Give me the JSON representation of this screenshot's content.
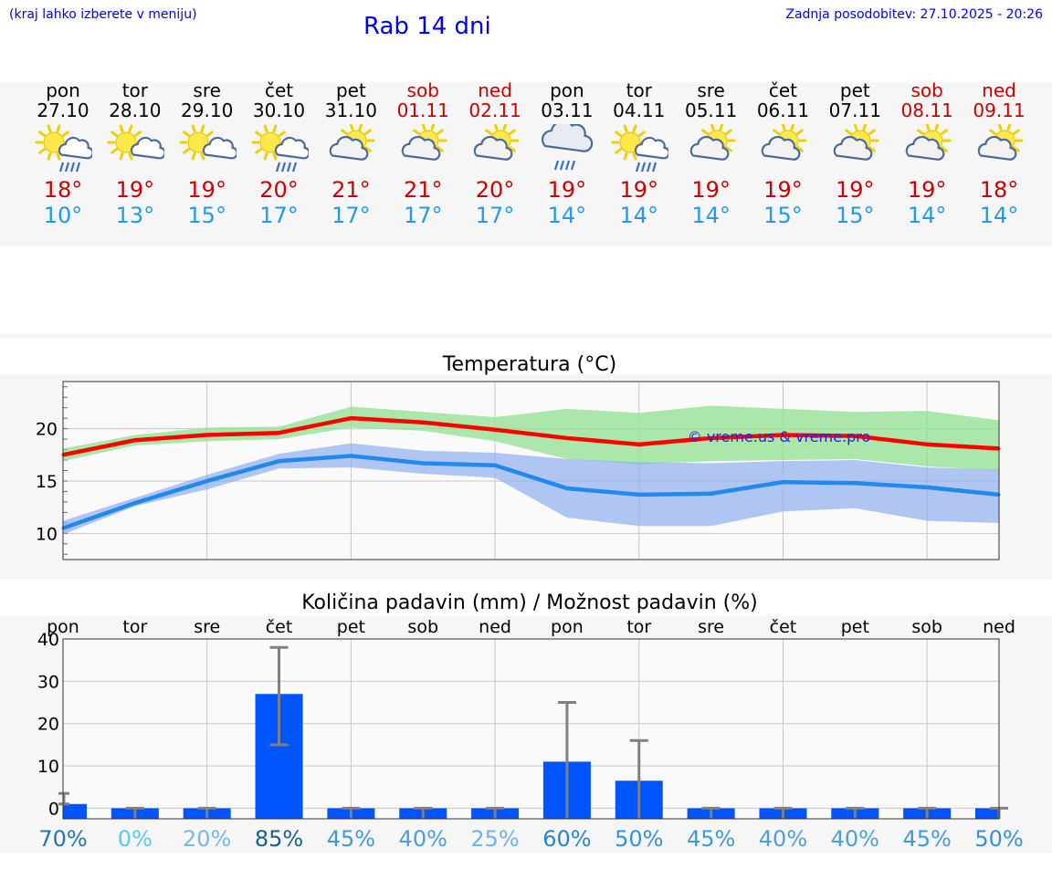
{
  "header": {
    "hint": "(kraj lahko izberete v meniju)",
    "title": "Rab 14 dni",
    "updated": "Zadnja posodobitev: 27.10.2025 - 20:26"
  },
  "colors": {
    "weekday": "#000000",
    "weekend": "#cc0000",
    "tmax": "#cc0000",
    "tmin": "#2299ee",
    "max_line": "#ff0000",
    "min_line": "#2288ee",
    "max_band": "#90e090",
    "min_band": "#88aaee",
    "bar": "#0055ff",
    "whisker": "#808080"
  },
  "days": [
    {
      "name": "pon",
      "date": "27.10",
      "weekend": false,
      "icon": "sun-cloud-rain-icon",
      "tmax": "18°",
      "tmin": "10°"
    },
    {
      "name": "tor",
      "date": "28.10",
      "weekend": false,
      "icon": "sun-cloud-icon",
      "tmax": "19°",
      "tmin": "13°"
    },
    {
      "name": "sre",
      "date": "29.10",
      "weekend": false,
      "icon": "sun-cloud-icon",
      "tmax": "19°",
      "tmin": "15°"
    },
    {
      "name": "čet",
      "date": "30.10",
      "weekend": false,
      "icon": "sun-cloud-rain-icon",
      "tmax": "20°",
      "tmin": "17°"
    },
    {
      "name": "pet",
      "date": "31.10",
      "weekend": false,
      "icon": "cloud-sun-icon",
      "tmax": "21°",
      "tmin": "17°"
    },
    {
      "name": "sob",
      "date": "01.11",
      "weekend": true,
      "icon": "cloud-sun-icon",
      "tmax": "21°",
      "tmin": "17°"
    },
    {
      "name": "ned",
      "date": "02.11",
      "weekend": true,
      "icon": "cloud-sun-icon",
      "tmax": "20°",
      "tmin": "17°"
    },
    {
      "name": "pon",
      "date": "03.11",
      "weekend": false,
      "icon": "cloud-rain-icon",
      "tmax": "19°",
      "tmin": "14°"
    },
    {
      "name": "tor",
      "date": "04.11",
      "weekend": false,
      "icon": "sun-cloud-rain-icon",
      "tmax": "19°",
      "tmin": "14°"
    },
    {
      "name": "sre",
      "date": "05.11",
      "weekend": false,
      "icon": "cloud-sun-icon",
      "tmax": "19°",
      "tmin": "14°"
    },
    {
      "name": "čet",
      "date": "06.11",
      "weekend": false,
      "icon": "cloud-sun-icon",
      "tmax": "19°",
      "tmin": "15°"
    },
    {
      "name": "pet",
      "date": "07.11",
      "weekend": false,
      "icon": "cloud-sun-icon",
      "tmax": "19°",
      "tmin": "15°"
    },
    {
      "name": "sob",
      "date": "08.11",
      "weekend": true,
      "icon": "cloud-sun-icon",
      "tmax": "19°",
      "tmin": "14°"
    },
    {
      "name": "ned",
      "date": "09.11",
      "weekend": true,
      "icon": "cloud-sun-icon",
      "tmax": "18°",
      "tmin": "14°"
    }
  ],
  "chart_data": [
    {
      "type": "line",
      "title": "Temperatura (°C)",
      "categories": [
        "27.10",
        "28.10",
        "29.10",
        "30.10",
        "31.10",
        "01.11",
        "02.11",
        "03.11",
        "04.11",
        "05.11",
        "06.11",
        "07.11",
        "08.11",
        "09.11"
      ],
      "ylim": [
        7.5,
        24.5
      ],
      "yticks": [
        10,
        15,
        20
      ],
      "grid": true,
      "watermark": "© vreme.us & vreme.pro",
      "series": [
        {
          "values": [
            17.5,
            18.9,
            19.4,
            19.6,
            21.0,
            20.6,
            19.9,
            19.1,
            18.5,
            19.1,
            19.4,
            19.3,
            18.5,
            18.1
          ],
          "band_low": [
            16.9,
            18.4,
            18.8,
            19.0,
            20.1,
            19.8,
            18.8,
            17.1,
            16.6,
            16.9,
            17.0,
            17.1,
            16.4,
            16.0
          ],
          "band_high": [
            18.1,
            19.4,
            20.1,
            20.2,
            22.1,
            21.6,
            21.1,
            21.9,
            21.5,
            22.2,
            21.9,
            21.6,
            21.7,
            20.8
          ]
        },
        {
          "values": [
            10.5,
            12.9,
            15.0,
            16.9,
            17.4,
            16.7,
            16.5,
            14.3,
            13.7,
            13.8,
            14.9,
            14.8,
            14.4,
            13.7
          ],
          "band_low": [
            9.9,
            12.6,
            14.2,
            16.2,
            16.3,
            15.7,
            15.3,
            11.5,
            10.7,
            10.7,
            12.1,
            12.4,
            11.2,
            11.0
          ],
          "band_high": [
            11.2,
            13.4,
            15.6,
            17.6,
            18.6,
            17.9,
            17.7,
            17.1,
            16.8,
            16.7,
            16.9,
            17.0,
            16.3,
            16.1
          ]
        }
      ]
    },
    {
      "type": "bar",
      "title": "Količina padavin (mm) / Možnost padavin (%)",
      "categories": [
        "pon",
        "tor",
        "sre",
        "čet",
        "pet",
        "sob",
        "ned",
        "pon",
        "tor",
        "sre",
        "čet",
        "pet",
        "sob",
        "ned"
      ],
      "ylim": [
        -2.5,
        40
      ],
      "yticks": [
        0,
        10,
        20,
        30,
        40
      ],
      "grid": true,
      "values": [
        1,
        0,
        0,
        27,
        0,
        0,
        0,
        11,
        6.5,
        0,
        0,
        0,
        0,
        0
      ],
      "error_low": [
        1,
        0,
        0,
        15,
        0,
        0,
        0,
        0,
        0,
        0,
        0,
        0,
        0,
        0
      ],
      "error_high": [
        3.5,
        0,
        0,
        38,
        0,
        0,
        0,
        25,
        16,
        0,
        0,
        0,
        0,
        0
      ],
      "probabilities": [
        "70%",
        "0%",
        "20%",
        "85%",
        "45%",
        "40%",
        "25%",
        "60%",
        "50%",
        "45%",
        "40%",
        "40%",
        "45%",
        "50%"
      ],
      "probability_values": [
        70,
        0,
        20,
        85,
        45,
        40,
        25,
        60,
        50,
        45,
        40,
        40,
        45,
        50
      ]
    }
  ]
}
